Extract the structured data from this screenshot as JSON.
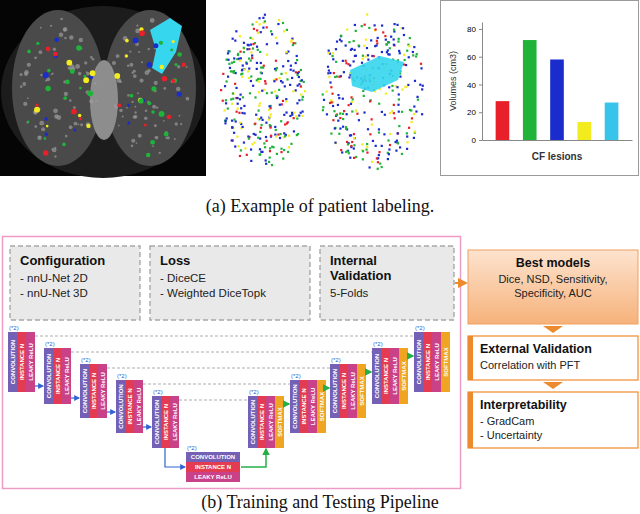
{
  "chart_data": {
    "type": "bar",
    "categories": [
      null,
      null,
      null,
      null,
      null
    ],
    "values": [
      28,
      72,
      58,
      13,
      27
    ],
    "colors": [
      "#e8202a",
      "#1fb33a",
      "#1a2ccc",
      "#f2ec1e",
      "#36c4ea"
    ],
    "ylim": [
      0,
      85
    ],
    "yticks": [
      0,
      20,
      40,
      60,
      80
    ],
    "y_label": "Volumes (cm3)",
    "x_label": "CF lesions",
    "tick_labels": "y",
    "grid": false
  },
  "captions": {
    "a": "(a) Example of patient labeling.",
    "b": "(b) Training and Testing Pipeline"
  },
  "diagram": {
    "config_boxes": [
      {
        "title": "Configuration",
        "items": [
          "- nnU-Net 2D",
          "- nnU-Net 3D"
        ]
      },
      {
        "title": "Loss",
        "items": [
          "- DiceCE",
          "- Weighted DiceTopk"
        ]
      },
      {
        "title": "Internal Validation",
        "items": [
          "5-Folds"
        ]
      }
    ],
    "result_boxes": [
      {
        "title": "Best models",
        "items": [
          "Dice, NSD, Sensitivity,",
          "Specificity, AUC"
        ]
      },
      {
        "title": "External Validation",
        "items": [
          "Correlation with PFT"
        ]
      },
      {
        "title": "Interpretability",
        "items": [
          "- GradCam",
          "- Uncertainty"
        ]
      }
    ],
    "unet": {
      "layers": [
        "CONVOLUTION",
        "INSTANCE N",
        "LEAKY ReLU"
      ],
      "output": "SOFTMAX",
      "repeat": "(*2)"
    }
  }
}
